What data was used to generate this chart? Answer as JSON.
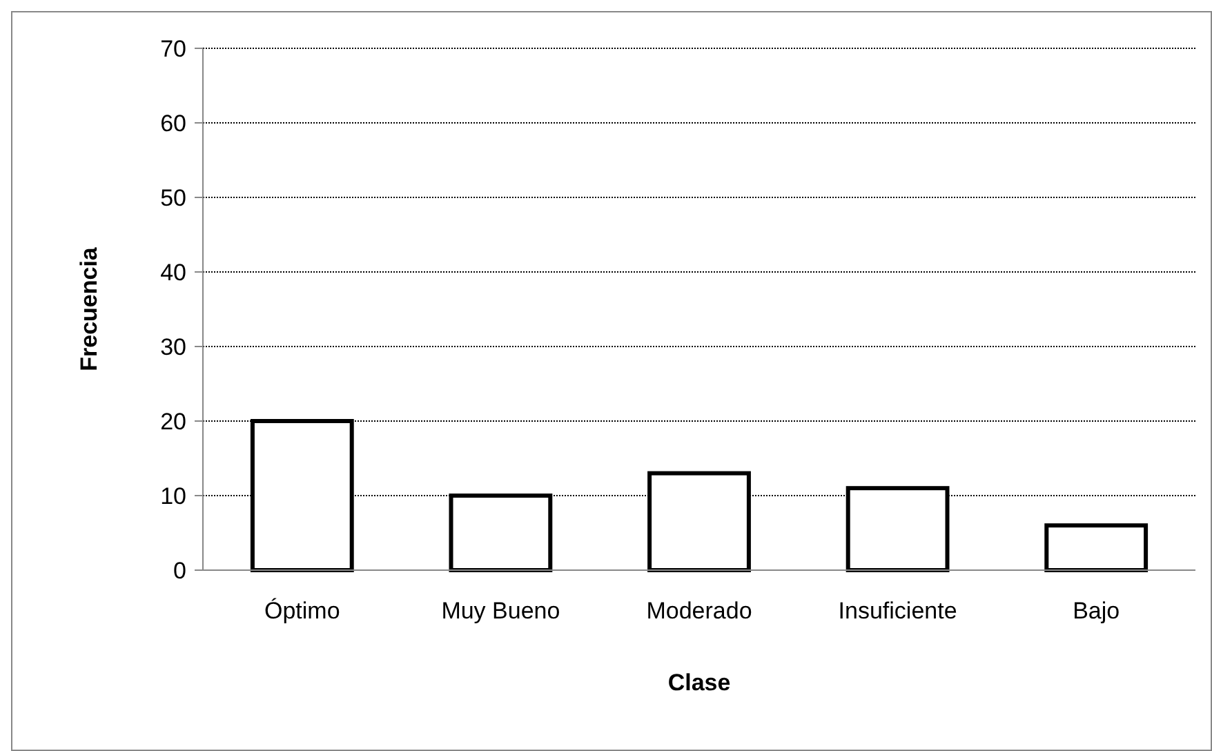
{
  "chart_data": {
    "type": "bar",
    "xlabel": "Clase",
    "ylabel": "Frecuencia",
    "categories": [
      "Óptimo",
      "Muy Bueno",
      "Moderado",
      "Insuficiente",
      "Bajo"
    ],
    "values": [
      20,
      10,
      13,
      11,
      6
    ],
    "color": "#ffffff",
    "ylim": [
      0,
      70
    ],
    "yticks": [
      0,
      10,
      20,
      30,
      40,
      50,
      60,
      70
    ],
    "grid": "y"
  }
}
